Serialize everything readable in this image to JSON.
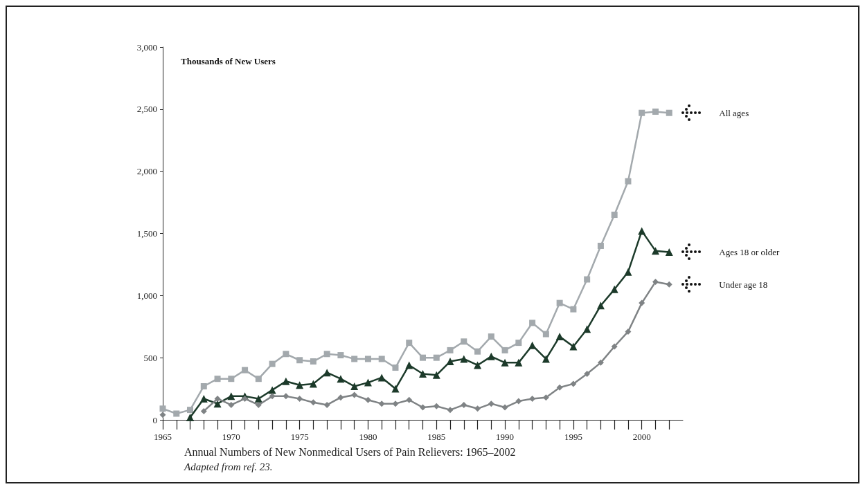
{
  "chart_data": {
    "type": "line",
    "title": "Annual Numbers of New Nonmedical Users of Pain Relievers: 1965–2002",
    "ylabel": "Thousands of New Users",
    "annotations": [
      "Adapted from ref. 23."
    ],
    "x": [
      1965,
      1966,
      1967,
      1968,
      1969,
      1970,
      1971,
      1972,
      1973,
      1974,
      1975,
      1976,
      1977,
      1978,
      1979,
      1980,
      1981,
      1982,
      1983,
      1984,
      1985,
      1986,
      1987,
      1988,
      1989,
      1990,
      1991,
      1992,
      1993,
      1994,
      1995,
      1996,
      1997,
      1998,
      1999,
      2000,
      2001,
      2002
    ],
    "series": [
      {
        "name": "All ages",
        "color": "#a3a9ad",
        "marker": "square",
        "values": [
          90,
          50,
          80,
          270,
          330,
          330,
          400,
          330,
          450,
          530,
          480,
          470,
          530,
          520,
          490,
          490,
          490,
          420,
          620,
          500,
          500,
          560,
          630,
          550,
          670,
          560,
          620,
          780,
          690,
          940,
          890,
          1130,
          1400,
          1650,
          1920,
          2470,
          2480,
          2470
        ]
      },
      {
        "name": "Ages 18 or older",
        "color": "#1c3a2a",
        "marker": "triangle",
        "values": [
          null,
          null,
          20,
          170,
          130,
          190,
          190,
          170,
          240,
          310,
          280,
          290,
          380,
          330,
          270,
          300,
          340,
          250,
          440,
          370,
          360,
          470,
          490,
          440,
          510,
          460,
          460,
          600,
          490,
          670,
          590,
          730,
          920,
          1050,
          1190,
          1520,
          1360,
          1350
        ]
      },
      {
        "name": "Under age 18",
        "color": "#7f8385",
        "marker": "diamond",
        "values": [
          40,
          null,
          null,
          70,
          170,
          120,
          170,
          120,
          190,
          190,
          170,
          140,
          120,
          180,
          200,
          160,
          130,
          130,
          160,
          100,
          110,
          80,
          120,
          90,
          130,
          100,
          150,
          170,
          180,
          260,
          290,
          370,
          460,
          590,
          710,
          940,
          1110,
          1090
        ]
      }
    ],
    "xlim": [
      1965,
      2003
    ],
    "xticks": [
      1965,
      {
        "value": 1966,
        "label": null
      },
      {
        "value": 1967,
        "label": null
      },
      {
        "value": 1968,
        "label": null
      },
      {
        "value": 1969,
        "label": null
      },
      1970,
      {
        "value": 1971,
        "label": null
      },
      {
        "value": 1972,
        "label": null
      },
      {
        "value": 1973,
        "label": null
      },
      {
        "value": 1974,
        "label": null
      },
      1975,
      {
        "value": 1976,
        "label": null
      },
      {
        "value": 1977,
        "label": null
      },
      {
        "value": 1978,
        "label": null
      },
      {
        "value": 1979,
        "label": null
      },
      1980,
      {
        "value": 1981,
        "label": null
      },
      {
        "value": 1982,
        "label": null
      },
      {
        "value": 1983,
        "label": null
      },
      {
        "value": 1984,
        "label": null
      },
      1985,
      {
        "value": 1986,
        "label": null
      },
      {
        "value": 1987,
        "label": null
      },
      {
        "value": 1988,
        "label": null
      },
      {
        "value": 1989,
        "label": null
      },
      1990,
      {
        "value": 1991,
        "label": null
      },
      {
        "value": 1992,
        "label": null
      },
      {
        "value": 1993,
        "label": null
      },
      {
        "value": 1994,
        "label": null
      },
      1995,
      {
        "value": 1996,
        "label": null
      },
      {
        "value": 1997,
        "label": null
      },
      {
        "value": 1998,
        "label": null
      },
      {
        "value": 1999,
        "label": null
      },
      2000,
      {
        "value": 2001,
        "label": null
      },
      {
        "value": 2002,
        "label": null
      }
    ],
    "ylim": [
      0,
      3000
    ],
    "yticks": [
      0,
      500,
      {
        "value": 1000,
        "label": "1,000"
      },
      {
        "value": 1500,
        "label": "1,500"
      },
      {
        "value": 2000,
        "label": "2,000"
      },
      {
        "value": 2500,
        "label": "2,500"
      },
      {
        "value": 3000,
        "label": "3,000"
      }
    ],
    "grid": false,
    "legend": false,
    "line_style": "solid"
  }
}
